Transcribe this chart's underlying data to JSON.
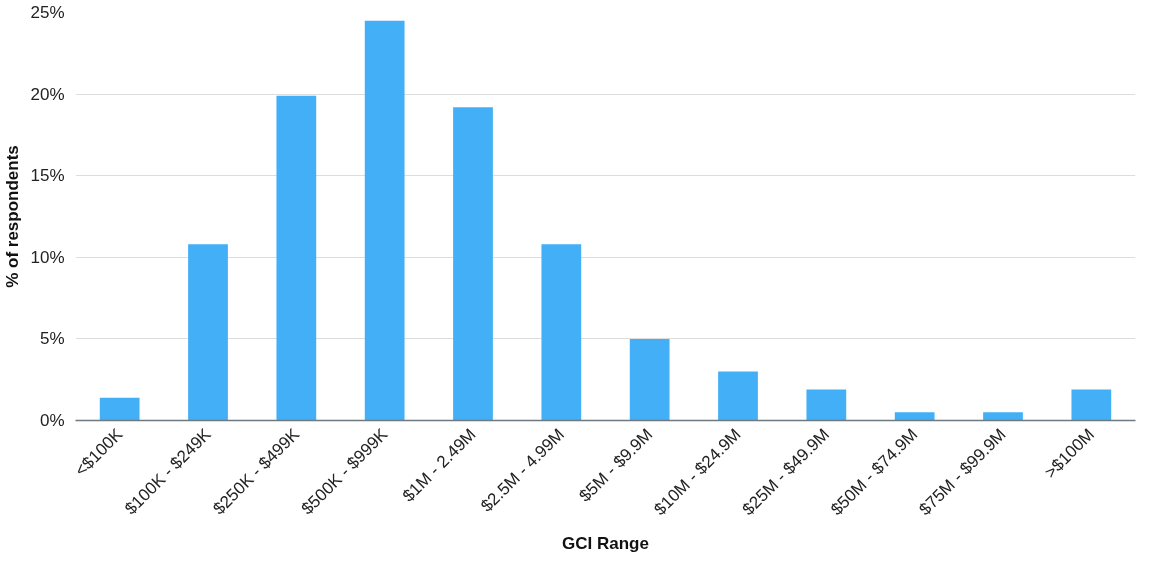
{
  "chart_data": {
    "type": "bar",
    "xlabel": "GCI Range",
    "ylabel": "% of respondents",
    "categories": [
      "<$100K",
      "$100K - $249K",
      "$250K - $499K",
      "$500K - $999K",
      "$1M - 2.49M",
      "$2.5M - 4.99M",
      "$5M - $9.9M",
      "$10M - $24.9M",
      "$25M - $49.9M",
      "$50M - $74.9M",
      "$75M - $99.9M",
      ">$100M"
    ],
    "values": [
      1.4,
      10.8,
      19.9,
      24.5,
      19.2,
      10.8,
      5.0,
      3.0,
      1.9,
      0.5,
      0.5,
      1.9
    ],
    "color": "#42aff6",
    "ylim": [
      0,
      25
    ],
    "yticks": [
      {
        "value": 0,
        "label": "0%"
      },
      {
        "value": 5,
        "label": "5%"
      },
      {
        "value": 10,
        "label": "10%"
      },
      {
        "value": 15,
        "label": "15%"
      },
      {
        "value": 20,
        "label": "20%"
      },
      {
        "value": 25,
        "label": "25%"
      }
    ],
    "grid": "y"
  }
}
